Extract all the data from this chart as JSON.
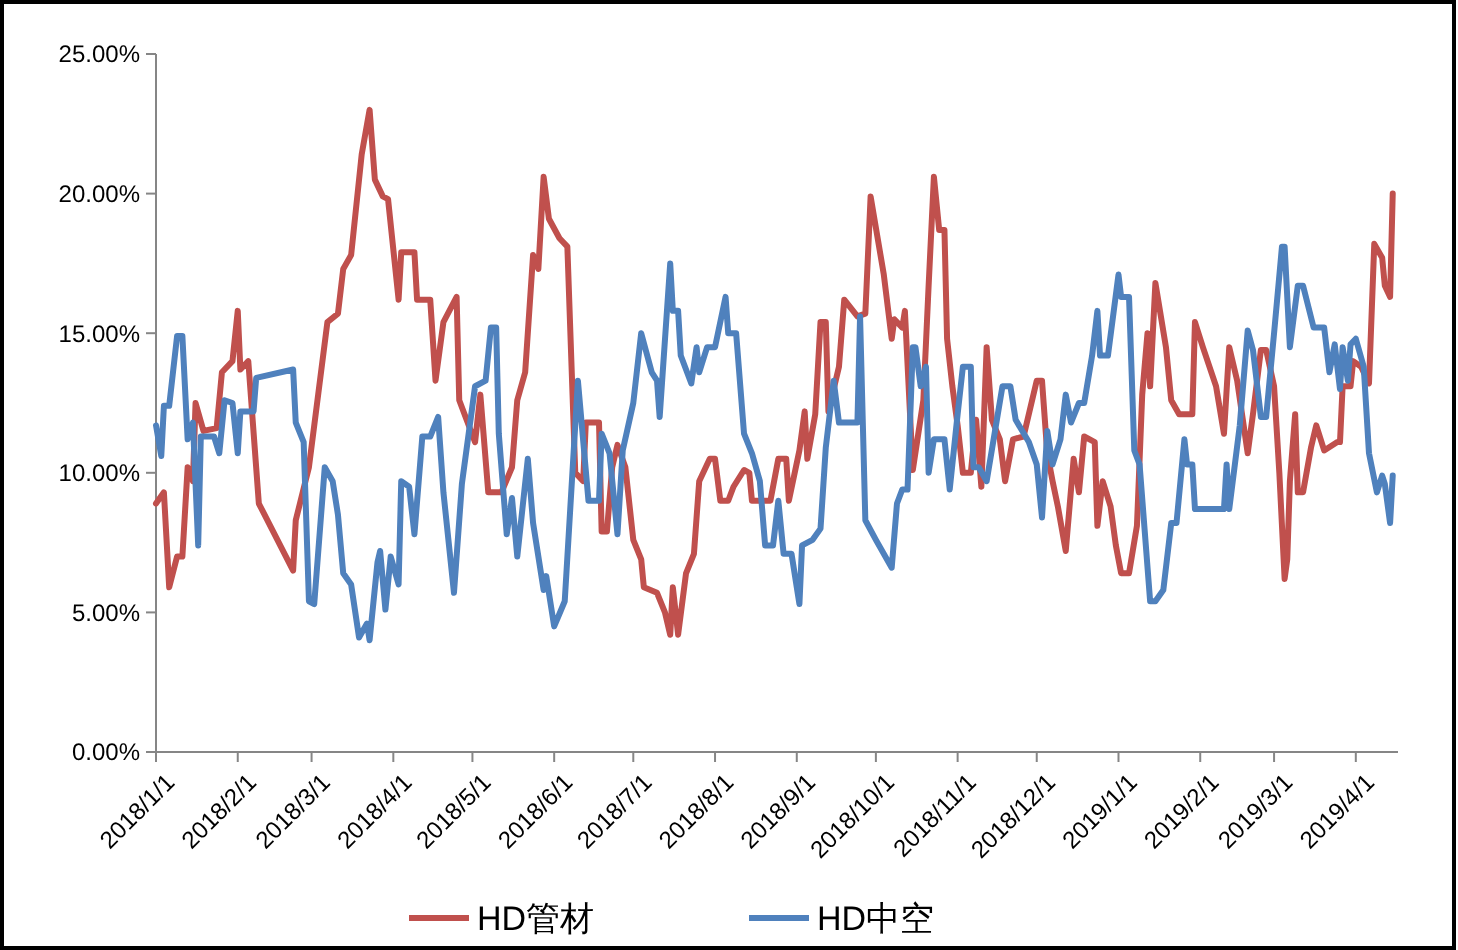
{
  "chart_data": {
    "type": "line",
    "xlim": [
      "2018-01-01",
      "2019-04-17"
    ],
    "xticks": [
      {
        "value": "2018-01-01",
        "label": "2018/1/1"
      },
      {
        "value": "2018-02-01",
        "label": "2018/2/1"
      },
      {
        "value": "2018-03-01",
        "label": "2018/3/1"
      },
      {
        "value": "2018-04-01",
        "label": "2018/4/1"
      },
      {
        "value": "2018-05-01",
        "label": "2018/5/1"
      },
      {
        "value": "2018-06-01",
        "label": "2018/6/1"
      },
      {
        "value": "2018-07-01",
        "label": "2018/7/1"
      },
      {
        "value": "2018-08-01",
        "label": "2018/8/1"
      },
      {
        "value": "2018-09-01",
        "label": "2018/9/1"
      },
      {
        "value": "2018-10-01",
        "label": "2018/10/1"
      },
      {
        "value": "2018-11-01",
        "label": "2018/11/1"
      },
      {
        "value": "2018-12-01",
        "label": "2018/12/1"
      },
      {
        "value": "2019-01-01",
        "label": "2019/1/1"
      },
      {
        "value": "2019-02-01",
        "label": "2019/2/1"
      },
      {
        "value": "2019-03-01",
        "label": "2019/3/1"
      },
      {
        "value": "2019-04-01",
        "label": "2019/4/1"
      }
    ],
    "ylim": [
      0,
      25
    ],
    "yticks": [
      {
        "value": 0,
        "label": "0.00%"
      },
      {
        "value": 5,
        "label": "5.00%"
      },
      {
        "value": 10,
        "label": "10.00%"
      },
      {
        "value": 15,
        "label": "15.00%"
      },
      {
        "value": 20,
        "label": "20.00%"
      },
      {
        "value": 25,
        "label": "25.00%"
      }
    ],
    "grid": false,
    "legend": "bottom",
    "marker": "none",
    "line_style": "solid",
    "series": [
      {
        "name": "HD管材",
        "color": "#c0504d",
        "x": [
          "2018-01-01",
          "2018-01-04",
          "2018-01-06",
          "2018-01-09",
          "2018-01-11",
          "2018-01-13",
          "2018-01-15",
          "2018-01-16",
          "2018-01-19",
          "2018-01-24",
          "2018-01-26",
          "2018-01-30",
          "2018-02-01",
          "2018-02-02",
          "2018-02-05",
          "2018-02-09",
          "2018-02-22",
          "2018-02-23",
          "2018-02-28",
          "2018-03-07",
          "2018-03-11",
          "2018-03-13",
          "2018-03-16",
          "2018-03-20",
          "2018-03-23",
          "2018-03-25",
          "2018-03-28",
          "2018-03-30",
          "2018-04-03",
          "2018-04-04",
          "2018-04-09",
          "2018-04-10",
          "2018-04-15",
          "2018-04-17",
          "2018-04-20",
          "2018-04-25",
          "2018-04-26",
          "2018-05-02",
          "2018-05-04",
          "2018-05-07",
          "2018-05-12",
          "2018-05-16",
          "2018-05-18",
          "2018-05-21",
          "2018-05-24",
          "2018-05-26",
          "2018-05-28",
          "2018-05-30",
          "2018-06-03",
          "2018-06-06",
          "2018-06-09",
          "2018-06-12",
          "2018-06-13",
          "2018-06-18",
          "2018-06-19",
          "2018-06-21",
          "2018-06-23",
          "2018-06-25",
          "2018-06-28",
          "2018-07-01",
          "2018-07-04",
          "2018-07-05",
          "2018-07-10",
          "2018-07-13",
          "2018-07-15",
          "2018-07-16",
          "2018-07-18",
          "2018-07-21",
          "2018-07-24",
          "2018-07-26",
          "2018-07-30",
          "2018-08-01",
          "2018-08-03",
          "2018-08-06",
          "2018-08-08",
          "2018-08-12",
          "2018-08-14",
          "2018-08-15",
          "2018-08-22",
          "2018-08-25",
          "2018-08-28",
          "2018-08-29",
          "2018-09-02",
          "2018-09-04",
          "2018-09-05",
          "2018-09-08",
          "2018-09-10",
          "2018-09-12",
          "2018-09-13",
          "2018-09-17",
          "2018-09-19",
          "2018-09-24",
          "2018-09-27",
          "2018-09-29",
          "2018-10-04",
          "2018-10-07",
          "2018-10-08",
          "2018-10-11",
          "2018-10-12",
          "2018-10-15",
          "2018-10-19",
          "2018-10-21",
          "2018-10-23",
          "2018-10-25",
          "2018-10-27",
          "2018-10-28",
          "2018-10-30",
          "2018-11-01",
          "2018-11-03",
          "2018-11-06",
          "2018-11-08",
          "2018-11-10",
          "2018-11-12",
          "2018-11-14",
          "2018-11-17",
          "2018-11-19",
          "2018-11-22",
          "2018-11-26",
          "2018-12-01",
          "2018-12-03",
          "2018-12-05",
          "2018-12-07",
          "2018-12-09",
          "2018-12-12",
          "2018-12-15",
          "2018-12-17",
          "2018-12-19",
          "2018-12-23",
          "2018-12-24",
          "2018-12-26",
          "2018-12-29",
          "2018-12-31",
          "2019-01-02",
          "2019-01-05",
          "2019-01-08",
          "2019-01-10",
          "2019-01-12",
          "2019-01-13",
          "2019-01-15",
          "2019-01-19",
          "2019-01-21",
          "2019-01-24",
          "2019-01-29",
          "2019-01-30",
          "2019-02-02",
          "2019-02-07",
          "2019-02-10",
          "2019-02-12",
          "2019-02-15",
          "2019-02-19",
          "2019-02-21",
          "2019-02-24",
          "2019-02-26",
          "2019-03-01",
          "2019-03-03",
          "2019-03-05",
          "2019-03-06",
          "2019-03-07",
          "2019-03-09",
          "2019-03-10",
          "2019-03-12",
          "2019-03-15",
          "2019-03-17",
          "2019-03-20",
          "2019-03-25",
          "2019-03-26",
          "2019-03-27",
          "2019-03-30",
          "2019-03-31",
          "2019-04-03",
          "2019-04-06",
          "2019-04-08",
          "2019-04-11",
          "2019-04-12",
          "2019-04-14",
          "2019-04-15"
        ],
        "values": [
          8.9,
          9.3,
          5.9,
          7.0,
          7.0,
          10.2,
          9.7,
          12.5,
          11.5,
          11.6,
          13.6,
          14.0,
          15.8,
          13.7,
          14.0,
          8.9,
          6.5,
          8.3,
          10.2,
          15.4,
          15.7,
          17.3,
          17.8,
          21.4,
          23.0,
          20.5,
          19.9,
          19.8,
          16.2,
          17.9,
          17.9,
          16.2,
          16.2,
          13.3,
          15.4,
          16.3,
          12.6,
          11.1,
          12.8,
          9.3,
          9.3,
          10.2,
          12.6,
          13.6,
          17.8,
          17.3,
          20.6,
          19.1,
          18.4,
          18.1,
          10.0,
          9.7,
          11.8,
          11.8,
          7.9,
          7.9,
          10.2,
          11.0,
          10.2,
          7.6,
          6.9,
          5.9,
          5.7,
          5.0,
          4.2,
          5.9,
          4.2,
          6.4,
          7.1,
          9.7,
          10.5,
          10.5,
          9.0,
          9.0,
          9.5,
          10.1,
          10.0,
          9.0,
          9.0,
          10.5,
          10.5,
          9.0,
          10.8,
          12.2,
          10.5,
          12.1,
          15.4,
          15.4,
          12.2,
          13.8,
          16.2,
          15.6,
          15.7,
          19.9,
          17.1,
          14.8,
          15.5,
          15.2,
          15.8,
          10.1,
          12.6,
          16.7,
          20.6,
          18.7,
          18.7,
          14.8,
          13.1,
          11.7,
          10.0,
          10.0,
          11.9,
          9.5,
          14.5,
          11.9,
          11.2,
          9.7,
          11.2,
          11.3,
          13.3,
          13.3,
          10.7,
          9.7,
          8.8,
          7.2,
          10.5,
          9.3,
          11.3,
          11.1,
          8.1,
          9.7,
          8.8,
          7.4,
          6.4,
          6.4,
          8.1,
          12.8,
          15.0,
          13.1,
          16.8,
          14.5,
          12.6,
          12.1,
          12.1,
          15.4,
          14.5,
          13.1,
          11.4,
          14.5,
          13.3,
          10.7,
          12.1,
          14.4,
          14.4,
          13.1,
          10.0,
          6.2,
          6.9,
          9.7,
          12.1,
          9.3,
          9.3,
          10.9,
          11.7,
          10.8,
          11.1,
          11.1,
          13.1,
          13.1,
          14.0,
          13.8,
          13.2,
          18.2,
          17.7,
          16.7,
          16.3,
          20.0
        ]
      },
      {
        "name": "HD中空",
        "color": "#4f81bd",
        "x": [
          "2018-01-01",
          "2018-01-03",
          "2018-01-04",
          "2018-01-06",
          "2018-01-09",
          "2018-01-11",
          "2018-01-13",
          "2018-01-15",
          "2018-01-17",
          "2018-01-18",
          "2018-01-23",
          "2018-01-25",
          "2018-01-27",
          "2018-01-30",
          "2018-02-01",
          "2018-02-02",
          "2018-02-07",
          "2018-02-08",
          "2018-02-22",
          "2018-02-23",
          "2018-02-26",
          "2018-02-28",
          "2018-03-02",
          "2018-03-06",
          "2018-03-09",
          "2018-03-11",
          "2018-03-13",
          "2018-03-16",
          "2018-03-19",
          "2018-03-22",
          "2018-03-23",
          "2018-03-26",
          "2018-03-27",
          "2018-03-29",
          "2018-03-31",
          "2018-04-03",
          "2018-04-04",
          "2018-04-07",
          "2018-04-09",
          "2018-04-12",
          "2018-04-15",
          "2018-04-18",
          "2018-04-20",
          "2018-04-24",
          "2018-04-27",
          "2018-05-02",
          "2018-05-06",
          "2018-05-08",
          "2018-05-10",
          "2018-05-11",
          "2018-05-14",
          "2018-05-16",
          "2018-05-18",
          "2018-05-22",
          "2018-05-24",
          "2018-05-28",
          "2018-05-29",
          "2018-06-01",
          "2018-06-05",
          "2018-06-10",
          "2018-06-14",
          "2018-06-18",
          "2018-06-19",
          "2018-06-22",
          "2018-06-25",
          "2018-06-27",
          "2018-07-01",
          "2018-07-04",
          "2018-07-08",
          "2018-07-10",
          "2018-07-11",
          "2018-07-15",
          "2018-07-16",
          "2018-07-18",
          "2018-07-19",
          "2018-07-23",
          "2018-07-25",
          "2018-07-26",
          "2018-07-29",
          "2018-08-01",
          "2018-08-05",
          "2018-08-06",
          "2018-08-09",
          "2018-08-12",
          "2018-08-15",
          "2018-08-18",
          "2018-08-20",
          "2018-08-23",
          "2018-08-25",
          "2018-08-27",
          "2018-08-30",
          "2018-09-02",
          "2018-09-03",
          "2018-09-07",
          "2018-09-10",
          "2018-09-12",
          "2018-09-15",
          "2018-09-17",
          "2018-09-24",
          "2018-09-25",
          "2018-09-27",
          "2018-10-01",
          "2018-10-07",
          "2018-10-09",
          "2018-10-11",
          "2018-10-13",
          "2018-10-15",
          "2018-10-16",
          "2018-10-18",
          "2018-10-20",
          "2018-10-21",
          "2018-10-23",
          "2018-10-27",
          "2018-10-29",
          "2018-11-01",
          "2018-11-03",
          "2018-11-06",
          "2018-11-07",
          "2018-11-09",
          "2018-11-12",
          "2018-11-18",
          "2018-11-21",
          "2018-11-23",
          "2018-11-28",
          "2018-12-01",
          "2018-12-03",
          "2018-12-05",
          "2018-12-07",
          "2018-12-10",
          "2018-12-12",
          "2018-12-14",
          "2018-12-17",
          "2018-12-19",
          "2018-12-22",
          "2018-12-24",
          "2018-12-25",
          "2018-12-28",
          "2019-01-01",
          "2019-01-02",
          "2019-01-05",
          "2019-01-07",
          "2019-01-09",
          "2019-01-13",
          "2019-01-15",
          "2019-01-18",
          "2019-01-21",
          "2019-01-23",
          "2019-01-26",
          "2019-01-27",
          "2019-01-29",
          "2019-01-30",
          "2019-02-10",
          "2019-02-11",
          "2019-02-12",
          "2019-02-16",
          "2019-02-19",
          "2019-02-21",
          "2019-02-24",
          "2019-02-26",
          "2019-03-01",
          "2019-03-04",
          "2019-03-05",
          "2019-03-07",
          "2019-03-10",
          "2019-03-12",
          "2019-03-16",
          "2019-03-20",
          "2019-03-22",
          "2019-03-24",
          "2019-03-26",
          "2019-03-27",
          "2019-03-29",
          "2019-03-30",
          "2019-04-01",
          "2019-04-04",
          "2019-04-06",
          "2019-04-09",
          "2019-04-11",
          "2019-04-12",
          "2019-04-14",
          "2019-04-15"
        ],
        "values": [
          11.7,
          10.6,
          12.4,
          12.4,
          14.9,
          14.9,
          11.2,
          11.8,
          7.4,
          11.3,
          11.3,
          10.7,
          12.6,
          12.5,
          10.7,
          12.2,
          12.2,
          13.4,
          13.7,
          11.8,
          11.1,
          5.4,
          5.3,
          10.2,
          9.7,
          8.5,
          6.4,
          6.0,
          4.1,
          4.6,
          4.0,
          6.8,
          7.2,
          5.1,
          7.0,
          6.0,
          9.7,
          9.5,
          7.8,
          11.3,
          11.3,
          12.0,
          9.3,
          5.7,
          9.6,
          13.1,
          13.3,
          15.2,
          15.2,
          11.4,
          7.8,
          9.1,
          7.0,
          10.5,
          8.2,
          5.8,
          6.3,
          4.5,
          5.4,
          13.3,
          9.0,
          9.0,
          11.4,
          10.7,
          7.8,
          10.8,
          12.5,
          15.0,
          13.6,
          13.3,
          12.0,
          17.5,
          15.8,
          15.8,
          14.2,
          13.2,
          14.5,
          13.6,
          14.5,
          14.5,
          16.3,
          15.0,
          15.0,
          11.4,
          10.7,
          9.7,
          7.4,
          7.4,
          9.0,
          7.1,
          7.1,
          5.3,
          7.4,
          7.6,
          8.0,
          10.9,
          13.3,
          11.8,
          11.8,
          15.6,
          8.3,
          7.6,
          6.6,
          8.9,
          9.4,
          9.4,
          14.5,
          14.5,
          13.1,
          13.8,
          10.0,
          11.2,
          11.2,
          9.4,
          12.1,
          13.8,
          13.8,
          10.2,
          10.2,
          9.7,
          13.1,
          13.1,
          11.9,
          11.1,
          10.3,
          8.4,
          11.5,
          10.3,
          11.2,
          12.8,
          11.8,
          12.5,
          12.5,
          14.2,
          15.8,
          14.2,
          14.2,
          17.1,
          16.3,
          16.3,
          10.8,
          10.3,
          5.4,
          5.4,
          5.8,
          8.2,
          8.2,
          11.2,
          10.3,
          10.3,
          8.7,
          8.7,
          10.3,
          8.7,
          11.7,
          15.1,
          14.4,
          12.0,
          12.0,
          15.0,
          18.1,
          18.1,
          14.5,
          16.7,
          16.7,
          15.2,
          15.2,
          13.6,
          14.6,
          13.0,
          14.5,
          13.3,
          14.6,
          14.8,
          13.8,
          10.7,
          9.3,
          9.9,
          9.6,
          8.2,
          9.9
        ]
      }
    ]
  }
}
